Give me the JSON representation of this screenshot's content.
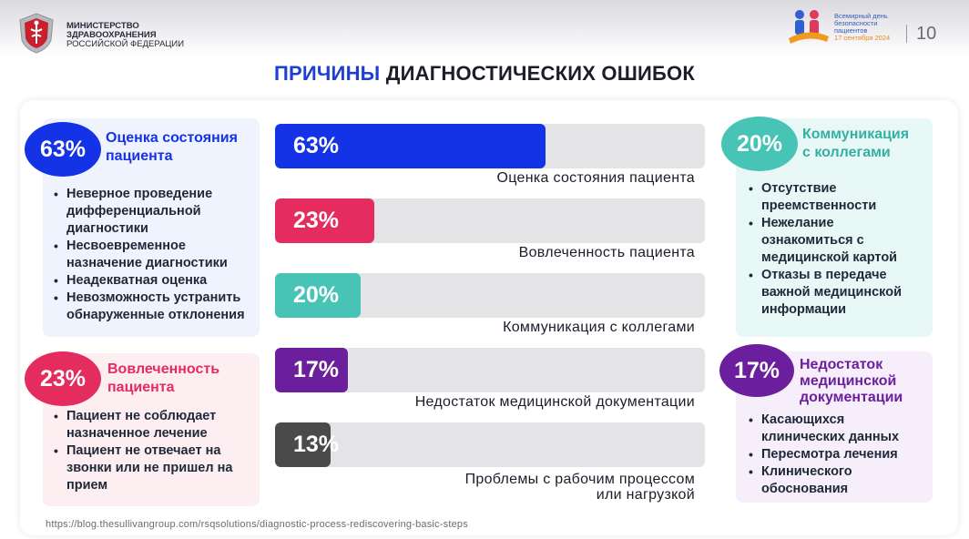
{
  "header": {
    "ministry_line1": "МИНИСТЕРСТВО",
    "ministry_line2": "ЗДРАВООХРАНЕНИЯ",
    "ministry_line3": "РОССИЙСКОЙ ФЕДЕРАЦИИ",
    "event_line1": "Всемирный день",
    "event_line2": "безопасности",
    "event_line3": "пациентов",
    "event_date": "17 сентября 2024",
    "page_number": "10"
  },
  "title": {
    "part1": "ПРИЧИНЫ",
    "part2": "ДИАГНОСТИЧЕСКИХ ОШИБОК"
  },
  "cards": {
    "assessment": {
      "percent": "63%",
      "title_line1": "Оценка состояния",
      "title_line2": "пациента",
      "items": [
        "Неверное проведение дифференциальной диагностики",
        "Несвоевременное назначение диагностики",
        "Неадекватная оценка",
        "Невозможность устранить обнаруженные отклонения"
      ]
    },
    "engagement": {
      "percent": "23%",
      "title_line1": "Вовлеченность",
      "title_line2": "пациента",
      "items": [
        "Пациент не соблюдает назначенное лечение",
        "Пациент не отвечает на звонки или не пришел на прием"
      ]
    },
    "communication": {
      "percent": "20%",
      "title_line1": "Коммуникация",
      "title_line2": "с коллегами",
      "items": [
        "Отсутствие преемственности",
        "Нежелание ознакомиться с медицинской картой",
        "Отказы в передаче важной медицинской информации"
      ]
    },
    "documentation": {
      "percent": "17%",
      "title_line1": "Недостаток",
      "title_line2": "медицинской",
      "title_line3": "документации",
      "items": [
        "Касающихся клинических данных",
        "Пересмотра лечения",
        "Клинического обоснования"
      ]
    }
  },
  "chart_data": {
    "type": "bar",
    "orientation": "horizontal",
    "categories": [
      "Оценка состояния пациента",
      "Вовлеченность пациента",
      "Коммуникация с коллегами",
      "Недостаток медицинской документации",
      "Проблемы с рабочим процессом или нагрузкой"
    ],
    "values": [
      63,
      23,
      20,
      17,
      13
    ],
    "value_labels": [
      "63%",
      "23%",
      "20%",
      "17%",
      "13%"
    ],
    "label_lines": [
      [
        "Оценка состояния пациента"
      ],
      [
        "Вовлеченность пациента"
      ],
      [
        "Коммуникация с коллегами"
      ],
      [
        "Недостаток медицинской документации"
      ],
      [
        "Проблемы с рабочим процессом",
        "или нагрузкой"
      ]
    ],
    "colors": [
      "#1433e6",
      "#e42c5e",
      "#48c4b6",
      "#6b1f9c",
      "#4a4a4a"
    ],
    "xlim": [
      0,
      100
    ],
    "title": "ПРИЧИНЫ ДИАГНОСТИЧЕСКИХ ОШИБОК"
  },
  "source_url": "https://blog.thesullivangroup.com/rsqsolutions/diagnostic-process-rediscovering-basic-steps",
  "colors": {
    "blue": "#1433e6",
    "pink": "#e42c5e",
    "teal": "#48c4b6",
    "purple": "#6b1f9c",
    "dark": "#4a4a4a"
  }
}
